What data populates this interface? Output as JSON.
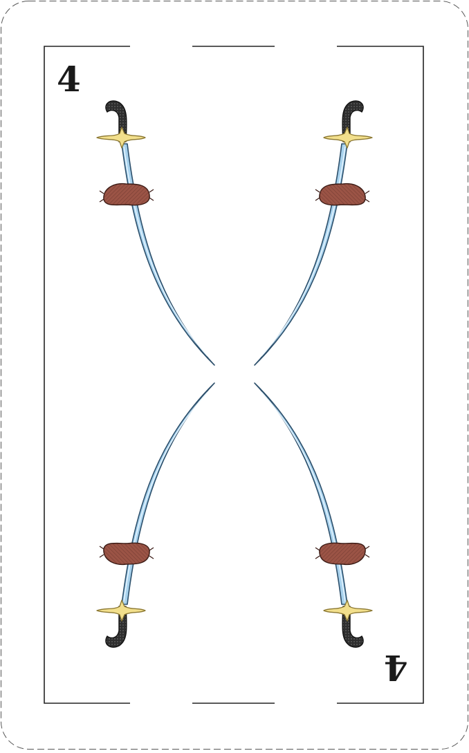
{
  "card": {
    "rank": "4",
    "suit_icon": "sword-sausage-icon",
    "colors": {
      "border": "#222222",
      "blade": "#a9d3ee",
      "blade_edge": "#2c4f6b",
      "hilt": "#2e2e2e",
      "guard": "#f2df8c",
      "sausage": "#9b5446"
    }
  }
}
